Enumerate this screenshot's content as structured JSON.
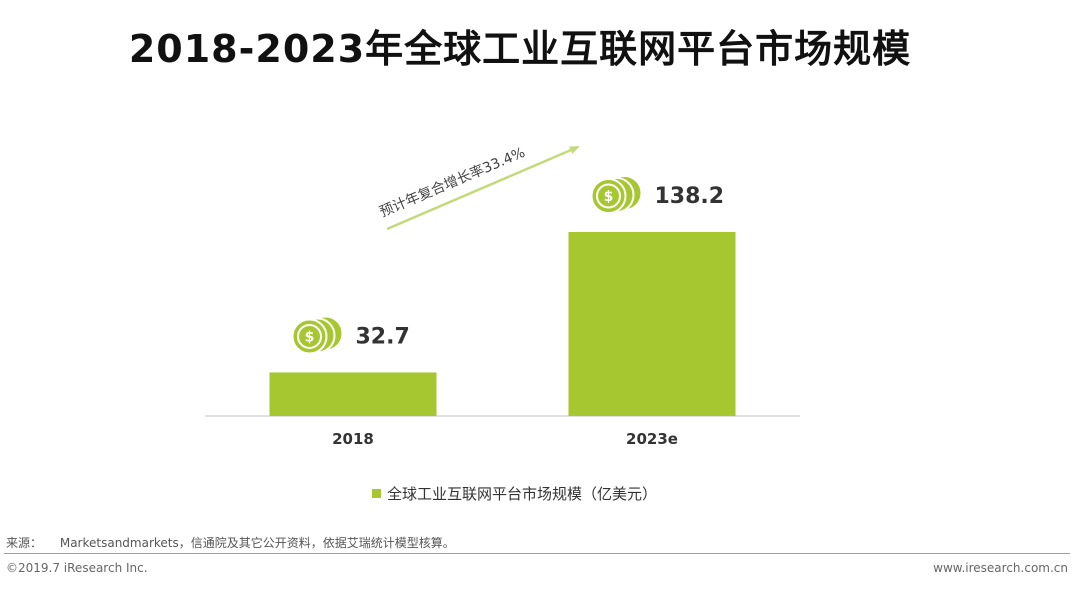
{
  "title": "2018-2023年全球工业互联网平台市场规模",
  "chart_data": {
    "type": "bar",
    "title": "2018-2023年全球工业互联网平台市场规模",
    "categories": [
      "2018",
      "2023e"
    ],
    "series": [
      {
        "name": "全球工业互联网平台市场规模（亿美元）",
        "values": [
          32.7,
          138.2
        ]
      }
    ],
    "value_labels": [
      "32.7",
      "138.2"
    ],
    "annotation": "预计年复合增长率33.4%",
    "bar_color": "#a6c72f",
    "coin_color": "#a6c72f",
    "ylim": [
      0,
      138.2
    ],
    "grid": false,
    "legend_position": "bottom"
  },
  "legend": {
    "label": "全球工业互联网平台市场规模（亿美元）",
    "color": "#a6c72f"
  },
  "footer": {
    "source_label": "来源：",
    "source_text": "Marketsandmarkets，信通院及其它公开资料，依据艾瑞统计模型核算。",
    "copyright": "©2019.7 iResearch Inc.",
    "website": "www.iresearch.com.cn"
  }
}
